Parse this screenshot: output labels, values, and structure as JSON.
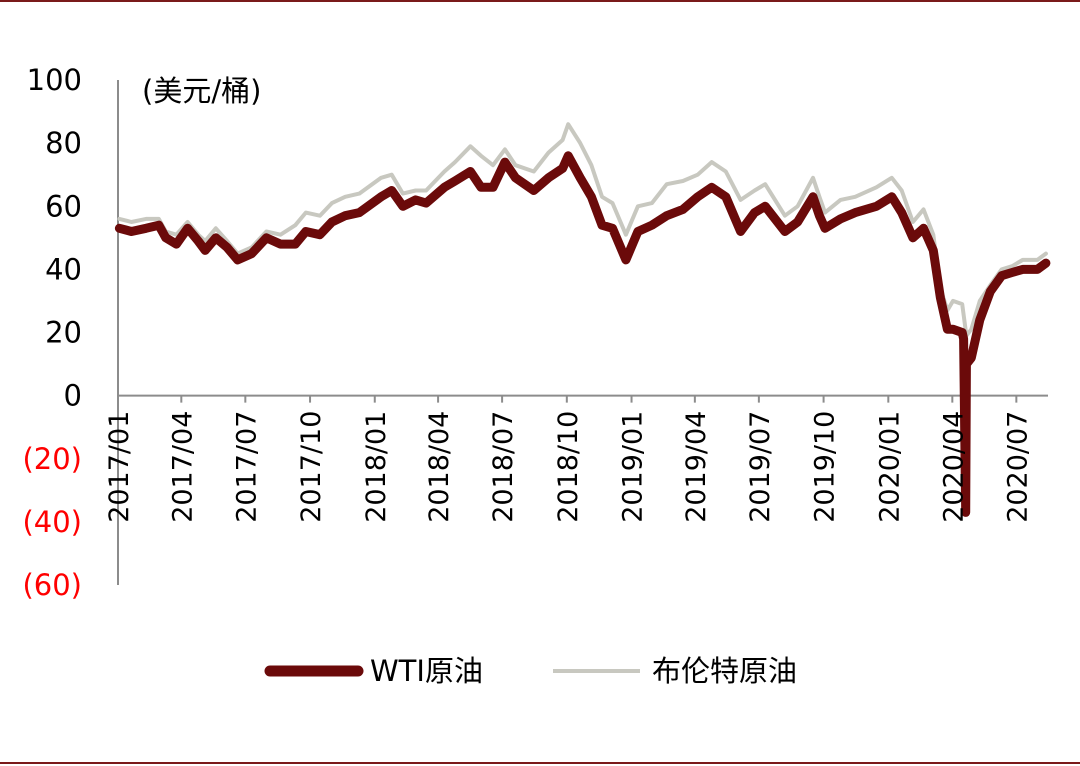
{
  "chart_data": {
    "type": "line",
    "unit_label": "(美元/桶)",
    "ylim": [
      -60,
      100
    ],
    "yticks": [
      {
        "value": 100,
        "label": "100"
      },
      {
        "value": 80,
        "label": "80"
      },
      {
        "value": 60,
        "label": "60"
      },
      {
        "value": 40,
        "label": "40"
      },
      {
        "value": 20,
        "label": "20"
      },
      {
        "value": 0,
        "label": "0"
      },
      {
        "value": -20,
        "label": "(20)"
      },
      {
        "value": -40,
        "label": "(40)"
      },
      {
        "value": -60,
        "label": "(60)"
      }
    ],
    "negative_tick_color": "#ff0000",
    "xlim": [
      "2017-01-01",
      "2020-08-15"
    ],
    "xticks": [
      {
        "date": "2017-01-01",
        "label": "2017/01"
      },
      {
        "date": "2017-04-01",
        "label": "2017/04"
      },
      {
        "date": "2017-07-01",
        "label": "2017/07"
      },
      {
        "date": "2017-10-01",
        "label": "2017/10"
      },
      {
        "date": "2018-01-01",
        "label": "2018/01"
      },
      {
        "date": "2018-04-01",
        "label": "2018/04"
      },
      {
        "date": "2018-07-01",
        "label": "2018/07"
      },
      {
        "date": "2018-10-01",
        "label": "2018/10"
      },
      {
        "date": "2019-01-01",
        "label": "2019/01"
      },
      {
        "date": "2019-04-01",
        "label": "2019/04"
      },
      {
        "date": "2019-07-01",
        "label": "2019/07"
      },
      {
        "date": "2019-10-01",
        "label": "2019/10"
      },
      {
        "date": "2020-01-01",
        "label": "2020/01"
      },
      {
        "date": "2020-04-01",
        "label": "2020/04"
      },
      {
        "date": "2020-07-01",
        "label": "2020/07"
      }
    ],
    "grid": false,
    "legend_position": "bottom",
    "series": [
      {
        "name": "布伦特原油",
        "color": "#c8c8c0",
        "points": [
          [
            "2017-01-03",
            56
          ],
          [
            "2017-01-20",
            55
          ],
          [
            "2017-02-10",
            56
          ],
          [
            "2017-02-28",
            56
          ],
          [
            "2017-03-10",
            52
          ],
          [
            "2017-03-25",
            51
          ],
          [
            "2017-04-10",
            55
          ],
          [
            "2017-04-25",
            51
          ],
          [
            "2017-05-05",
            49
          ],
          [
            "2017-05-20",
            53
          ],
          [
            "2017-06-05",
            49
          ],
          [
            "2017-06-20",
            45
          ],
          [
            "2017-07-10",
            47
          ],
          [
            "2017-07-31",
            52
          ],
          [
            "2017-08-20",
            51
          ],
          [
            "2017-09-10",
            54
          ],
          [
            "2017-09-25",
            58
          ],
          [
            "2017-10-15",
            57
          ],
          [
            "2017-11-01",
            61
          ],
          [
            "2017-11-20",
            63
          ],
          [
            "2017-12-10",
            64
          ],
          [
            "2018-01-10",
            69
          ],
          [
            "2018-01-25",
            70
          ],
          [
            "2018-02-10",
            64
          ],
          [
            "2018-02-28",
            65
          ],
          [
            "2018-03-15",
            65
          ],
          [
            "2018-04-10",
            71
          ],
          [
            "2018-04-25",
            74
          ],
          [
            "2018-05-17",
            79
          ],
          [
            "2018-06-01",
            76
          ],
          [
            "2018-06-18",
            73
          ],
          [
            "2018-07-05",
            78
          ],
          [
            "2018-07-20",
            73
          ],
          [
            "2018-08-15",
            71
          ],
          [
            "2018-09-05",
            77
          ],
          [
            "2018-09-25",
            81
          ],
          [
            "2018-10-03",
            86
          ],
          [
            "2018-10-20",
            80
          ],
          [
            "2018-11-05",
            73
          ],
          [
            "2018-11-20",
            63
          ],
          [
            "2018-12-05",
            61
          ],
          [
            "2018-12-24",
            51
          ],
          [
            "2019-01-10",
            60
          ],
          [
            "2019-01-30",
            61
          ],
          [
            "2019-02-20",
            67
          ],
          [
            "2019-03-15",
            68
          ],
          [
            "2019-04-05",
            70
          ],
          [
            "2019-04-25",
            74
          ],
          [
            "2019-05-15",
            71
          ],
          [
            "2019-06-05",
            62
          ],
          [
            "2019-06-25",
            65
          ],
          [
            "2019-07-10",
            67
          ],
          [
            "2019-08-07",
            57
          ],
          [
            "2019-08-25",
            60
          ],
          [
            "2019-09-16",
            69
          ],
          [
            "2019-09-25",
            63
          ],
          [
            "2019-10-03",
            58
          ],
          [
            "2019-10-25",
            62
          ],
          [
            "2019-11-15",
            63
          ],
          [
            "2019-12-15",
            66
          ],
          [
            "2020-01-06",
            69
          ],
          [
            "2020-01-20",
            65
          ],
          [
            "2020-02-05",
            55
          ],
          [
            "2020-02-20",
            59
          ],
          [
            "2020-03-05",
            51
          ],
          [
            "2020-03-15",
            34
          ],
          [
            "2020-03-25",
            27
          ],
          [
            "2020-04-02",
            30
          ],
          [
            "2020-04-15",
            29
          ],
          [
            "2020-04-21",
            19
          ],
          [
            "2020-04-28",
            21
          ],
          [
            "2020-05-10",
            30
          ],
          [
            "2020-05-25",
            35
          ],
          [
            "2020-06-10",
            40
          ],
          [
            "2020-06-25",
            41
          ],
          [
            "2020-07-10",
            43
          ],
          [
            "2020-07-31",
            43
          ],
          [
            "2020-08-12",
            45
          ]
        ]
      },
      {
        "name": "WTI原油",
        "color": "#6b0a0a",
        "points": [
          [
            "2017-01-03",
            53
          ],
          [
            "2017-01-20",
            52
          ],
          [
            "2017-02-10",
            53
          ],
          [
            "2017-02-28",
            54
          ],
          [
            "2017-03-10",
            50
          ],
          [
            "2017-03-25",
            48
          ],
          [
            "2017-04-10",
            53
          ],
          [
            "2017-04-25",
            49
          ],
          [
            "2017-05-05",
            46
          ],
          [
            "2017-05-20",
            50
          ],
          [
            "2017-06-05",
            47
          ],
          [
            "2017-06-20",
            43
          ],
          [
            "2017-07-10",
            45
          ],
          [
            "2017-07-31",
            50
          ],
          [
            "2017-08-20",
            48
          ],
          [
            "2017-09-10",
            48
          ],
          [
            "2017-09-25",
            52
          ],
          [
            "2017-10-15",
            51
          ],
          [
            "2017-11-01",
            55
          ],
          [
            "2017-11-20",
            57
          ],
          [
            "2017-12-10",
            58
          ],
          [
            "2018-01-10",
            63
          ],
          [
            "2018-01-25",
            65
          ],
          [
            "2018-02-10",
            60
          ],
          [
            "2018-02-28",
            62
          ],
          [
            "2018-03-15",
            61
          ],
          [
            "2018-04-10",
            66
          ],
          [
            "2018-04-25",
            68
          ],
          [
            "2018-05-17",
            71
          ],
          [
            "2018-06-01",
            66
          ],
          [
            "2018-06-18",
            66
          ],
          [
            "2018-07-05",
            74
          ],
          [
            "2018-07-20",
            69
          ],
          [
            "2018-08-15",
            65
          ],
          [
            "2018-09-05",
            69
          ],
          [
            "2018-09-25",
            72
          ],
          [
            "2018-10-03",
            76
          ],
          [
            "2018-10-20",
            69
          ],
          [
            "2018-11-05",
            63
          ],
          [
            "2018-11-20",
            54
          ],
          [
            "2018-12-05",
            53
          ],
          [
            "2018-12-24",
            43
          ],
          [
            "2019-01-10",
            52
          ],
          [
            "2019-01-30",
            54
          ],
          [
            "2019-02-20",
            57
          ],
          [
            "2019-03-15",
            59
          ],
          [
            "2019-04-05",
            63
          ],
          [
            "2019-04-25",
            66
          ],
          [
            "2019-05-15",
            63
          ],
          [
            "2019-06-05",
            52
          ],
          [
            "2019-06-25",
            58
          ],
          [
            "2019-07-10",
            60
          ],
          [
            "2019-08-07",
            52
          ],
          [
            "2019-08-25",
            55
          ],
          [
            "2019-09-16",
            63
          ],
          [
            "2019-09-25",
            57
          ],
          [
            "2019-10-03",
            53
          ],
          [
            "2019-10-25",
            56
          ],
          [
            "2019-11-15",
            58
          ],
          [
            "2019-12-15",
            60
          ],
          [
            "2020-01-06",
            63
          ],
          [
            "2020-01-20",
            58
          ],
          [
            "2020-02-05",
            50
          ],
          [
            "2020-02-20",
            53
          ],
          [
            "2020-03-05",
            46
          ],
          [
            "2020-03-15",
            31
          ],
          [
            "2020-03-25",
            21
          ],
          [
            "2020-04-02",
            21
          ],
          [
            "2020-04-15",
            20
          ],
          [
            "2020-04-17",
            18
          ],
          [
            "2020-04-20",
            -37
          ],
          [
            "2020-04-21",
            10
          ],
          [
            "2020-04-28",
            12
          ],
          [
            "2020-05-10",
            24
          ],
          [
            "2020-05-25",
            33
          ],
          [
            "2020-06-10",
            38
          ],
          [
            "2020-06-25",
            39
          ],
          [
            "2020-07-10",
            40
          ],
          [
            "2020-07-31",
            40
          ],
          [
            "2020-08-12",
            42
          ]
        ]
      }
    ]
  },
  "legend": [
    {
      "label": "WTI原油",
      "color": "#6b0a0a"
    },
    {
      "label": "布伦特原油",
      "color": "#c8c8c0"
    }
  ]
}
